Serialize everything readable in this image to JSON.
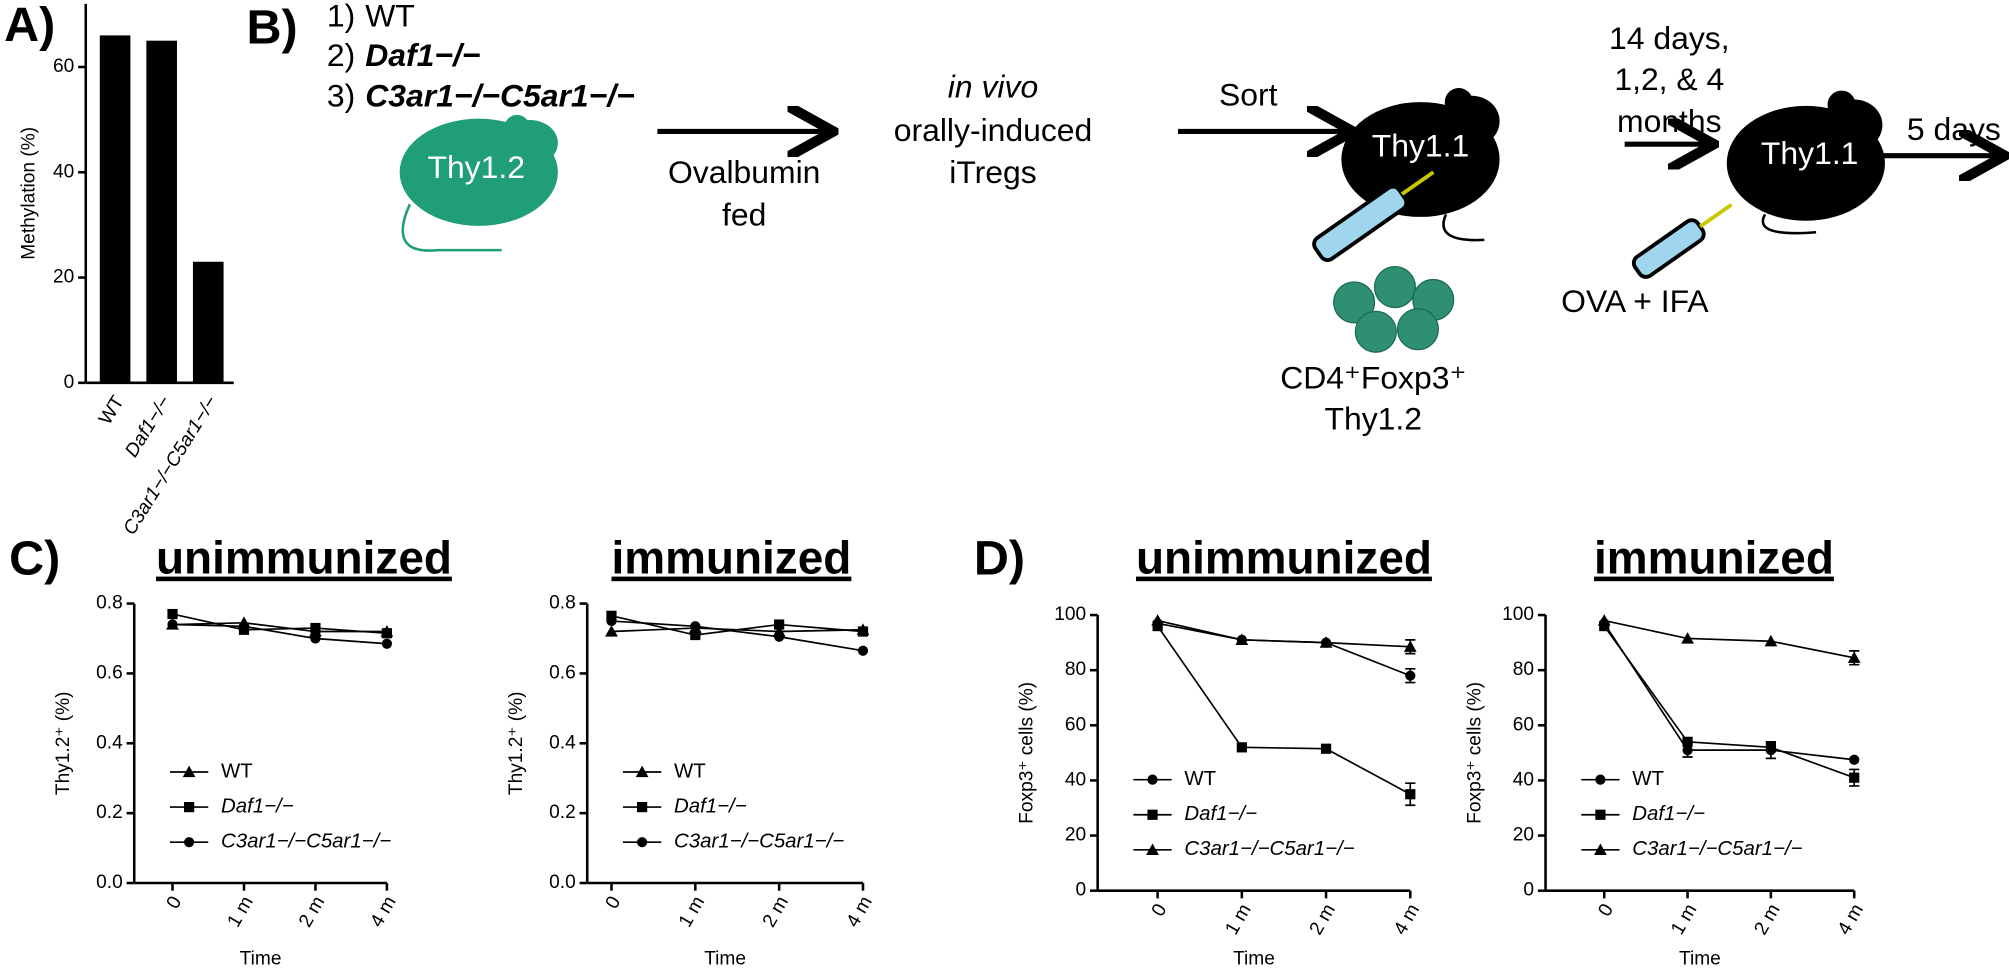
{
  "chart_data": [
    {
      "type": "bar",
      "panel_label": "A)",
      "y_label": "Methylation (%)",
      "categories": [
        "WT",
        "Daf1−/−",
        "C3ar1−/−C5ar1−/−"
      ],
      "values": [
        66,
        65,
        23
      ],
      "color": "#000000",
      "ylim": [
        0,
        72
      ],
      "yticks": [
        0,
        20,
        40,
        60
      ]
    },
    {
      "type": "line",
      "panel_label": "C)",
      "title": "unimmunized",
      "y_label": "Thy1.2⁺ (%)",
      "x_label": "Time",
      "categories": [
        "0",
        "1 m",
        "2 m",
        "4 m"
      ],
      "ylim": [
        0,
        0.8
      ],
      "yticks": [
        {
          "value": 0,
          "label": "0.0"
        },
        0.2,
        0.4,
        0.6,
        0.8
      ],
      "legend": "lower left",
      "series": [
        {
          "name": "WT",
          "marker": "triangle",
          "color": "#000000",
          "values": [
            0.74,
            0.745,
            0.72,
            0.72
          ]
        },
        {
          "name": "Daf1−/−",
          "marker": "square",
          "color": "#000000",
          "values": [
            0.77,
            0.725,
            0.73,
            0.715
          ]
        },
        {
          "name": "C3ar1−/−C5ar1−/−",
          "marker": "circle",
          "color": "#000000",
          "values": [
            0.74,
            0.735,
            0.7,
            0.685
          ]
        }
      ]
    },
    {
      "type": "line",
      "title": "immunized",
      "y_label": "Thy1.2⁺ (%)",
      "x_label": "Time",
      "categories": [
        "0",
        "1 m",
        "2 m",
        "4 m"
      ],
      "ylim": [
        0,
        0.8
      ],
      "yticks": [
        {
          "value": 0,
          "label": "0.0"
        },
        0.2,
        0.4,
        0.6,
        0.8
      ],
      "legend": "lower left",
      "series": [
        {
          "name": "WT",
          "marker": "triangle",
          "color": "#000000",
          "values": [
            0.72,
            0.73,
            0.72,
            0.725
          ]
        },
        {
          "name": "Daf1−/−",
          "marker": "square",
          "color": "#000000",
          "values": [
            0.765,
            0.71,
            0.74,
            0.72
          ]
        },
        {
          "name": "C3ar1−/−C5ar1−/−",
          "marker": "circle",
          "color": "#000000",
          "values": [
            0.75,
            0.735,
            0.705,
            0.665
          ]
        }
      ]
    },
    {
      "type": "line",
      "panel_label": "D)",
      "title": "unimmunized",
      "y_label": "Foxp3⁺ cells (%)",
      "x_label": "Time",
      "categories": [
        "0",
        "1 m",
        "2 m",
        "4 m"
      ],
      "ylim": [
        0,
        100
      ],
      "yticks": [
        0,
        20,
        40,
        60,
        80,
        100
      ],
      "legend": "lower left",
      "series": [
        {
          "name": "WT",
          "marker": "circle",
          "color": "#000000",
          "values": [
            97,
            91,
            90,
            78
          ],
          "errors": [
            null,
            null,
            null,
            2.5
          ]
        },
        {
          "name": "Daf1−/−",
          "marker": "square",
          "color": "#000000",
          "values": [
            96,
            52,
            51.5,
            35
          ],
          "errors": [
            null,
            null,
            null,
            4
          ]
        },
        {
          "name": "C3ar1−/−C5ar1−/−",
          "marker": "triangle",
          "color": "#000000",
          "values": [
            98,
            91,
            90,
            88.5
          ],
          "errors": [
            null,
            null,
            null,
            2.5
          ]
        }
      ]
    },
    {
      "type": "line",
      "title": "immunized",
      "y_label": "Foxp3⁺ cells (%)",
      "x_label": "Time",
      "categories": [
        "0",
        "1 m",
        "2 m",
        "4 m"
      ],
      "ylim": [
        0,
        100
      ],
      "yticks": [
        0,
        20,
        40,
        60,
        80,
        100
      ],
      "legend": "lower left",
      "series": [
        {
          "name": "WT",
          "marker": "circle",
          "color": "#000000",
          "values": [
            97,
            51,
            51,
            47.5
          ],
          "errors": [
            null,
            2.5,
            3,
            null
          ]
        },
        {
          "name": "Daf1−/−",
          "marker": "square",
          "color": "#000000",
          "values": [
            96,
            54,
            52,
            41
          ],
          "errors": [
            null,
            null,
            null,
            3
          ]
        },
        {
          "name": "C3ar1−/−C5ar1−/−",
          "marker": "triangle",
          "color": "#000000",
          "values": [
            98,
            91.5,
            90.5,
            84.5
          ],
          "errors": [
            null,
            null,
            null,
            2.5
          ]
        }
      ]
    }
  ],
  "diagram": {
    "panel_label": "B)",
    "groups": [
      {
        "number": "1)",
        "name": "WT"
      },
      {
        "number": "2)",
        "name": "Daf1−/−"
      },
      {
        "number": "3)",
        "name": "C3ar1−/−C5ar1−/−"
      }
    ],
    "donor": "Thy1.2",
    "feeding": [
      "Ovalbumin",
      "fed"
    ],
    "induced": [
      "in vivo",
      "orally-induced",
      "iTregs"
    ],
    "sort": "Sort",
    "recipient": "Thy1.1",
    "cells": [
      "CD4⁺Foxp3⁺",
      "Thy1.2"
    ],
    "interval": [
      "14 days,",
      "1,2, & 4",
      "months"
    ],
    "recipient2": "Thy1.1",
    "challenge": "OVA + IFA",
    "readout": "5 days"
  }
}
